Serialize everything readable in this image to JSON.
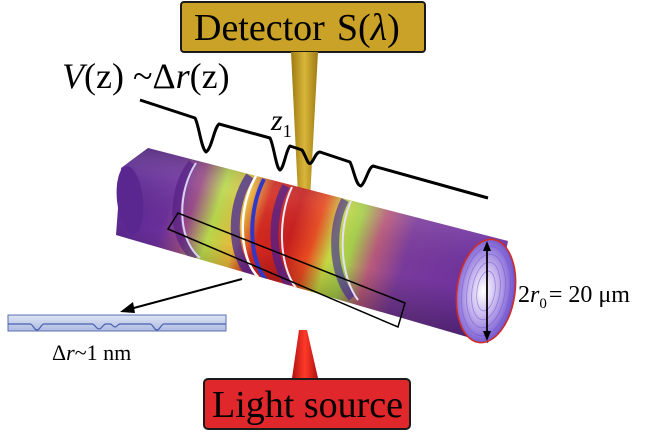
{
  "detector": {
    "label": "Detector",
    "symbol": "S(",
    "lambda": "λ",
    "close": ")",
    "fill": "#c9a227"
  },
  "light_source": {
    "label": "Light source",
    "fill": "#e0272b"
  },
  "variation": {
    "lhs_v": "V",
    "lhs_arg": "(z) ~",
    "rhs_delta": "Δ",
    "rhs_r": "r",
    "rhs_arg": "(z)"
  },
  "position": {
    "z": "z",
    "sub": "1"
  },
  "radius": {
    "prefix": "2",
    "r": "r",
    "sub": "0",
    "value": "= 20 μm"
  },
  "profile": {
    "delta": "Δ",
    "r": "r",
    "value": "~1 nm"
  },
  "colors": {
    "fiber_purple": "#6a2b8c",
    "fiber_red": "#d42a1f",
    "fiber_green": "#a8d84a",
    "beam_gold": "#c9a227",
    "beam_red": "#e0272b"
  }
}
